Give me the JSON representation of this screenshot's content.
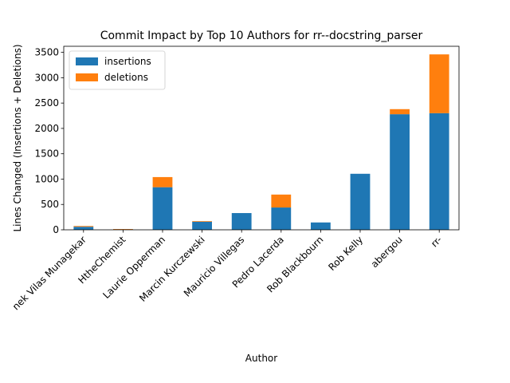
{
  "chart_data": {
    "type": "bar",
    "stacked": true,
    "title": "Commit Impact by Top 10 Authors for rr--docstring_parser",
    "xlabel": "Author",
    "ylabel": "Lines Changed (Insertions + Deletions)",
    "categories": [
      "Abhishek Vilas Munagekar",
      "HtheChemist",
      "Laurie Opperman",
      "Marcin Kurczewski",
      "Mauricio Villegas",
      "Pedro Lacerda",
      "Rob Blackbourn",
      "Rob Kelly",
      "abergou",
      "rr-"
    ],
    "category_labels": [
      "nek Vilas Munagekar",
      "HtheChemist",
      "Laurie Opperman",
      "Marcin Kurczewski",
      "Mauricio Villegas",
      "Pedro Lacerda",
      "Rob Blackbourn",
      "Rob Kelly",
      "abergou",
      "rr-"
    ],
    "series": [
      {
        "name": "insertions",
        "color": "#1f77b4",
        "values": [
          60,
          12,
          840,
          160,
          330,
          440,
          145,
          1105,
          2280,
          2300
        ]
      },
      {
        "name": "deletions",
        "color": "#ff7f0e",
        "values": [
          15,
          3,
          200,
          12,
          0,
          255,
          0,
          0,
          100,
          1160
        ]
      }
    ],
    "ylim": [
      0,
      3620
    ],
    "yticks": [
      0,
      500,
      1000,
      1500,
      2000,
      2500,
      3000,
      3500
    ],
    "legend_position": "upper-left",
    "grid": false
  }
}
